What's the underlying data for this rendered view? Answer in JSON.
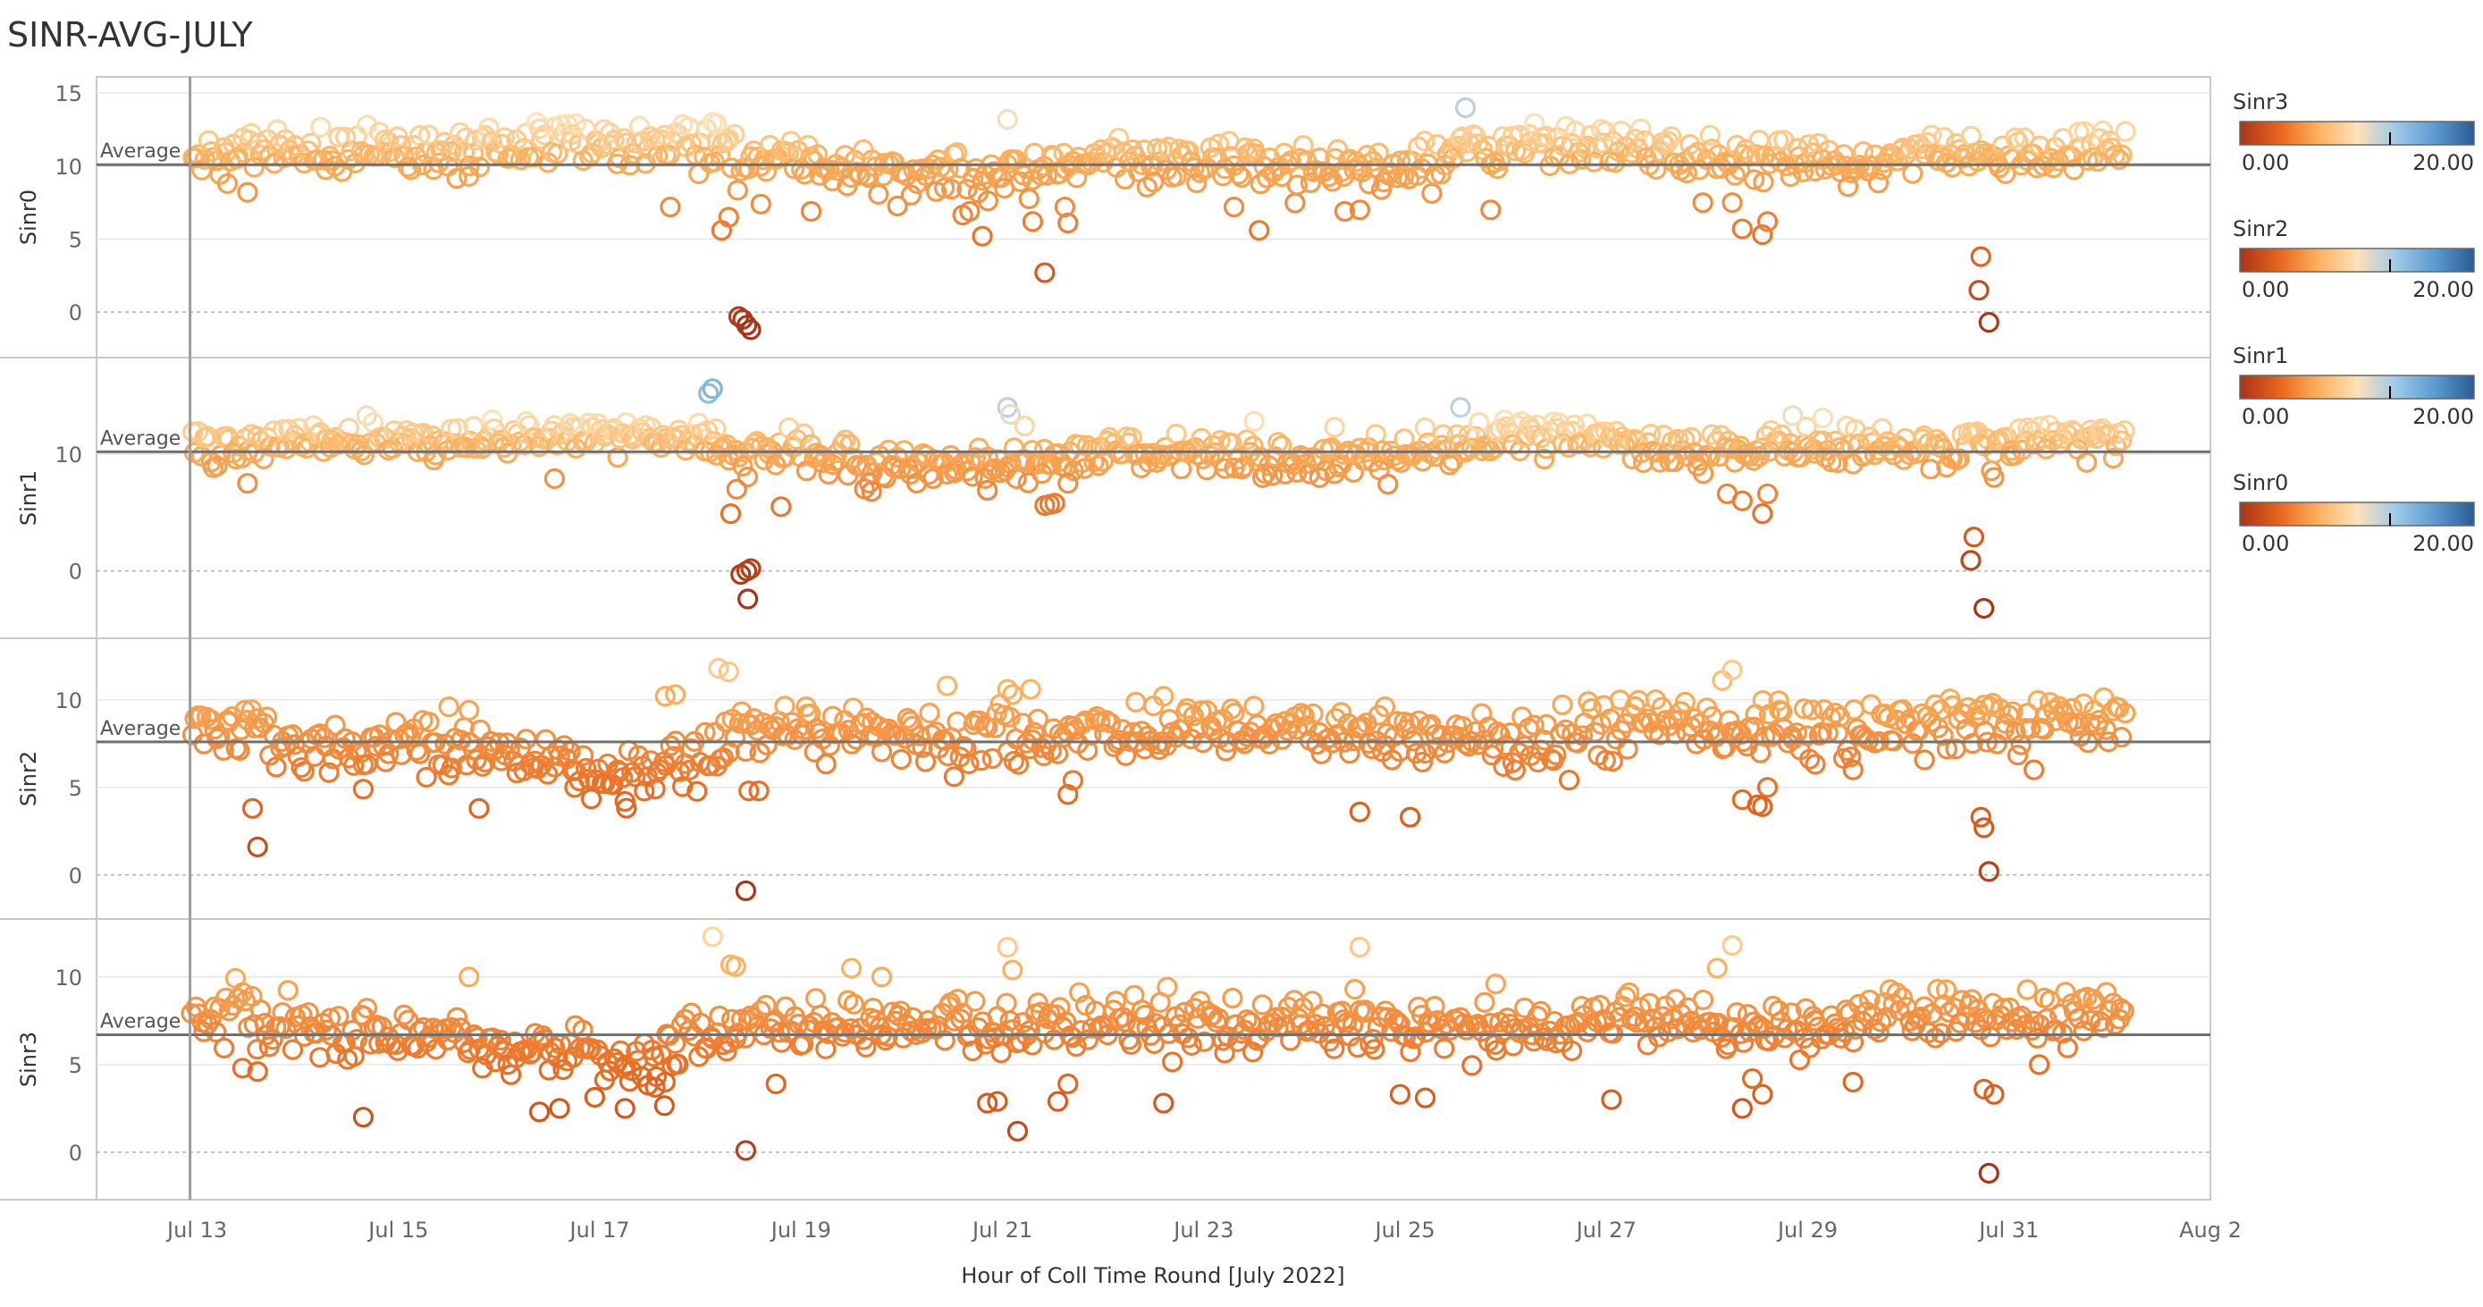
{
  "title": "SINR-AVG-JULY",
  "colors": {
    "dark": "#a83418",
    "orange": "#e8641c",
    "light_orange": "#fdb05c",
    "pale": "#fde2b8",
    "light_blue": "#9ec9e8",
    "mid_blue": "#5b9bd0",
    "dark_blue": "#2a5b94",
    "average_line": "#707070",
    "grid": "#d4d4d4",
    "axis_text": "#666666"
  },
  "chart_data": {
    "type": "scatter",
    "title": "SINR-AVG-JULY",
    "xlabel": "Hour of Coll Time Round [July 2022]",
    "x_range": [
      "2022-07-12",
      "2022-08-02"
    ],
    "x_ticks": [
      "Jul 13",
      "Jul 15",
      "Jul 17",
      "Jul 19",
      "Jul 21",
      "Jul 23",
      "Jul 25",
      "Jul 27",
      "Jul 29",
      "Jul 31",
      "Aug 2"
    ],
    "grid": true,
    "marker": "hollow-circle",
    "reference_line_label": "Average",
    "panels": [
      {
        "name": "Sinr0",
        "ylabel": "Sinr0",
        "yticks": [
          0,
          5,
          10,
          15
        ],
        "ylim": [
          -2.5,
          15.5
        ],
        "average": 10.1,
        "base": [
          [
            13.0,
            10.5
          ],
          [
            14.0,
            11.3
          ],
          [
            15.0,
            11.0
          ],
          [
            16.0,
            11.4
          ],
          [
            17.0,
            11.7
          ],
          [
            18.0,
            11.4
          ],
          [
            18.4,
            10.5
          ],
          [
            19.0,
            10.4
          ],
          [
            20.0,
            9.4
          ],
          [
            21.0,
            9.4
          ],
          [
            22.0,
            10.4
          ],
          [
            23.0,
            10.2
          ],
          [
            24.0,
            10.0
          ],
          [
            25.0,
            10.1
          ],
          [
            26.0,
            11.6
          ],
          [
            27.0,
            11.2
          ],
          [
            28.0,
            10.6
          ],
          [
            29.0,
            10.3
          ],
          [
            30.0,
            10.6
          ],
          [
            31.0,
            10.8
          ],
          [
            32.0,
            11.2
          ]
        ],
        "outliers": [
          [
            18.21,
            5.6
          ],
          [
            18.28,
            6.5
          ],
          [
            18.38,
            -0.3
          ],
          [
            18.42,
            -0.5
          ],
          [
            18.46,
            -0.9
          ],
          [
            18.5,
            -1.2
          ],
          [
            18.6,
            7.4
          ],
          [
            19.1,
            6.9
          ],
          [
            18.12,
            13.0
          ],
          [
            18.16,
            12.9
          ],
          [
            17.7,
            7.2
          ],
          [
            20.8,
            5.2
          ],
          [
            21.05,
            13.2
          ],
          [
            21.42,
            2.7
          ],
          [
            21.3,
            6.2
          ],
          [
            21.65,
            6.1
          ],
          [
            21.62,
            7.2
          ],
          [
            23.55,
            5.6
          ],
          [
            23.3,
            7.2
          ],
          [
            25.6,
            14.0
          ],
          [
            25.85,
            7.0
          ],
          [
            28.25,
            7.5
          ],
          [
            28.35,
            5.7
          ],
          [
            28.55,
            5.3
          ],
          [
            28.6,
            6.2
          ],
          [
            30.72,
            3.8
          ],
          [
            30.7,
            1.5
          ],
          [
            30.8,
            -0.7
          ],
          [
            15.7,
            9.3
          ],
          [
            13.5,
            8.2
          ],
          [
            13.3,
            8.8
          ],
          [
            22.5,
            8.9
          ],
          [
            24.4,
            6.9
          ],
          [
            24.55,
            7.0
          ],
          [
            29.4,
            8.6
          ]
        ]
      },
      {
        "name": "Sinr1",
        "ylabel": "Sinr1",
        "yticks": [
          0,
          10
        ],
        "ylim": [
          -5.0,
          17.5
        ],
        "average": 10.2,
        "base": [
          [
            13.0,
            10.5
          ],
          [
            14.0,
            11.2
          ],
          [
            15.0,
            11.0
          ],
          [
            16.0,
            11.4
          ],
          [
            17.0,
            11.9
          ],
          [
            18.0,
            11.3
          ],
          [
            18.4,
            9.8
          ],
          [
            19.0,
            10.0
          ],
          [
            20.0,
            9.0
          ],
          [
            21.0,
            9.0
          ],
          [
            22.0,
            10.5
          ],
          [
            23.0,
            10.1
          ],
          [
            24.0,
            9.5
          ],
          [
            25.0,
            9.8
          ],
          [
            26.0,
            11.8
          ],
          [
            27.0,
            11.3
          ],
          [
            28.0,
            10.3
          ],
          [
            29.0,
            10.6
          ],
          [
            30.0,
            10.8
          ],
          [
            31.0,
            10.9
          ],
          [
            32.0,
            11.6
          ]
        ],
        "outliers": [
          [
            18.08,
            15.2
          ],
          [
            18.12,
            15.6
          ],
          [
            18.3,
            4.9
          ],
          [
            18.36,
            7.0
          ],
          [
            18.4,
            -0.3
          ],
          [
            18.46,
            0.0
          ],
          [
            18.5,
            0.2
          ],
          [
            18.47,
            -2.4
          ],
          [
            18.8,
            5.5
          ],
          [
            18.16,
            9.9
          ],
          [
            21.05,
            14.0
          ],
          [
            21.08,
            13.4
          ],
          [
            21.22,
            12.4
          ],
          [
            21.42,
            5.6
          ],
          [
            21.47,
            5.7
          ],
          [
            21.52,
            5.8
          ],
          [
            21.65,
            7.5
          ],
          [
            20.85,
            6.9
          ],
          [
            25.55,
            14.0
          ],
          [
            23.5,
            12.8
          ],
          [
            24.3,
            12.3
          ],
          [
            28.2,
            6.6
          ],
          [
            28.35,
            6.0
          ],
          [
            28.55,
            4.9
          ],
          [
            28.6,
            6.6
          ],
          [
            28.85,
            13.3
          ],
          [
            29.15,
            13.1
          ],
          [
            30.65,
            2.9
          ],
          [
            30.62,
            0.9
          ],
          [
            30.75,
            -3.2
          ],
          [
            30.85,
            8.0
          ],
          [
            13.5,
            7.5
          ],
          [
            15.35,
            9.5
          ],
          [
            16.55,
            7.9
          ],
          [
            19.7,
            6.8
          ]
        ]
      },
      {
        "name": "Sinr2",
        "ylabel": "Sinr2",
        "yticks": [
          0,
          5,
          10
        ],
        "ylim": [
          -2.0,
          13.0
        ],
        "average": 7.6,
        "base": [
          [
            13.0,
            8.3
          ],
          [
            13.5,
            8.7
          ],
          [
            14.0,
            7.3
          ],
          [
            15.0,
            7.4
          ],
          [
            16.0,
            6.9
          ],
          [
            17.0,
            5.8
          ],
          [
            18.0,
            6.5
          ],
          [
            18.3,
            8.2
          ],
          [
            19.0,
            8.3
          ],
          [
            20.0,
            8.0
          ],
          [
            21.0,
            7.9
          ],
          [
            22.0,
            8.1
          ],
          [
            23.0,
            8.3
          ],
          [
            24.0,
            8.2
          ],
          [
            25.0,
            8.1
          ],
          [
            26.0,
            7.6
          ],
          [
            27.0,
            8.8
          ],
          [
            28.0,
            8.4
          ],
          [
            29.0,
            8.2
          ],
          [
            30.0,
            8.5
          ],
          [
            31.0,
            8.8
          ],
          [
            32.0,
            8.8
          ]
        ],
        "outliers": [
          [
            13.55,
            3.8
          ],
          [
            13.6,
            1.6
          ],
          [
            14.65,
            4.9
          ],
          [
            15.5,
            9.6
          ],
          [
            15.7,
            9.4
          ],
          [
            15.8,
            3.8
          ],
          [
            16.75,
            5.0
          ],
          [
            17.25,
            4.2
          ],
          [
            17.65,
            10.2
          ],
          [
            17.75,
            10.3
          ],
          [
            18.18,
            11.8
          ],
          [
            18.28,
            11.6
          ],
          [
            18.48,
            4.8
          ],
          [
            18.58,
            4.8
          ],
          [
            18.45,
            -0.9
          ],
          [
            19.05,
            9.6
          ],
          [
            20.45,
            10.8
          ],
          [
            21.05,
            10.6
          ],
          [
            21.1,
            10.3
          ],
          [
            21.28,
            10.6
          ],
          [
            21.65,
            4.6
          ],
          [
            21.7,
            5.4
          ],
          [
            22.6,
            10.2
          ],
          [
            24.55,
            3.6
          ],
          [
            25.05,
            3.3
          ],
          [
            24.8,
            9.6
          ],
          [
            28.15,
            11.1
          ],
          [
            28.25,
            11.7
          ],
          [
            28.35,
            4.3
          ],
          [
            28.5,
            4.0
          ],
          [
            28.6,
            5.0
          ],
          [
            28.55,
            3.9
          ],
          [
            28.72,
            9.4
          ],
          [
            29.45,
            6.0
          ],
          [
            30.72,
            3.3
          ],
          [
            30.75,
            2.7
          ],
          [
            30.8,
            0.2
          ],
          [
            30.75,
            9.7
          ]
        ]
      },
      {
        "name": "Sinr3",
        "ylabel": "Sinr3",
        "yticks": [
          0,
          5,
          10
        ],
        "ylim": [
          -2.2,
          12.8
        ],
        "average": 6.7,
        "base": [
          [
            13.0,
            7.4
          ],
          [
            13.4,
            8.3
          ],
          [
            14.0,
            6.7
          ],
          [
            15.0,
            6.8
          ],
          [
            16.0,
            6.0
          ],
          [
            16.5,
            6.0
          ],
          [
            17.0,
            5.5
          ],
          [
            17.5,
            5.0
          ],
          [
            18.0,
            6.8
          ],
          [
            19.0,
            7.5
          ],
          [
            20.0,
            7.6
          ],
          [
            21.0,
            7.1
          ],
          [
            22.0,
            7.7
          ],
          [
            23.0,
            7.3
          ],
          [
            24.0,
            7.2
          ],
          [
            25.0,
            7.4
          ],
          [
            26.0,
            7.0
          ],
          [
            27.0,
            7.5
          ],
          [
            28.0,
            7.3
          ],
          [
            29.0,
            7.5
          ],
          [
            30.0,
            8.1
          ],
          [
            31.0,
            7.7
          ],
          [
            32.0,
            7.9
          ]
        ],
        "outliers": [
          [
            13.45,
            4.8
          ],
          [
            13.6,
            4.6
          ],
          [
            14.65,
            2.0
          ],
          [
            15.7,
            10.0
          ],
          [
            16.4,
            2.3
          ],
          [
            16.6,
            2.5
          ],
          [
            17.25,
            2.5
          ],
          [
            17.55,
            3.7
          ],
          [
            17.65,
            4.0
          ],
          [
            17.75,
            6.2
          ],
          [
            18.12,
            12.3
          ],
          [
            18.3,
            10.7
          ],
          [
            18.35,
            10.6
          ],
          [
            18.45,
            0.1
          ],
          [
            18.75,
            3.9
          ],
          [
            19.5,
            10.5
          ],
          [
            19.8,
            10.0
          ],
          [
            21.05,
            11.7
          ],
          [
            21.1,
            10.4
          ],
          [
            20.85,
            2.8
          ],
          [
            20.95,
            2.9
          ],
          [
            21.15,
            1.2
          ],
          [
            21.55,
            2.9
          ],
          [
            21.65,
            3.9
          ],
          [
            22.6,
            2.8
          ],
          [
            24.55,
            11.7
          ],
          [
            24.5,
            9.3
          ],
          [
            24.95,
            3.3
          ],
          [
            25.2,
            3.1
          ],
          [
            25.9,
            9.6
          ],
          [
            27.05,
            3.0
          ],
          [
            28.1,
            10.5
          ],
          [
            28.25,
            11.8
          ],
          [
            28.35,
            2.5
          ],
          [
            28.55,
            3.3
          ],
          [
            28.45,
            4.2
          ],
          [
            29.45,
            4.0
          ],
          [
            30.75,
            3.6
          ],
          [
            30.85,
            3.3
          ],
          [
            30.8,
            -1.2
          ],
          [
            31.3,
            5.0
          ]
        ]
      }
    ],
    "legend": [
      {
        "name": "Sinr3",
        "min_label": "0.00",
        "max_label": "20.00",
        "stops": [
          "#a83418",
          "#e8641c",
          "#fdb05c",
          "#fde2b8",
          "#9ec9e8",
          "#5b9bd0",
          "#2a5b94"
        ]
      },
      {
        "name": "Sinr2",
        "min_label": "0.00",
        "max_label": "20.00",
        "stops": [
          "#a83418",
          "#e8641c",
          "#fdb05c",
          "#fde2b8",
          "#9ec9e8",
          "#5b9bd0",
          "#2a5b94"
        ]
      },
      {
        "name": "Sinr1",
        "min_label": "0.00",
        "max_label": "20.00",
        "stops": [
          "#a83418",
          "#e8641c",
          "#fdb05c",
          "#fde2b8",
          "#9ec9e8",
          "#5b9bd0",
          "#2a5b94"
        ]
      },
      {
        "name": "Sinr0",
        "min_label": "0.00",
        "max_label": "20.00",
        "stops": [
          "#a83418",
          "#e8641c",
          "#fdb05c",
          "#fde2b8",
          "#9ec9e8",
          "#5b9bd0",
          "#2a5b94"
        ]
      }
    ],
    "legend_placement": "right"
  }
}
